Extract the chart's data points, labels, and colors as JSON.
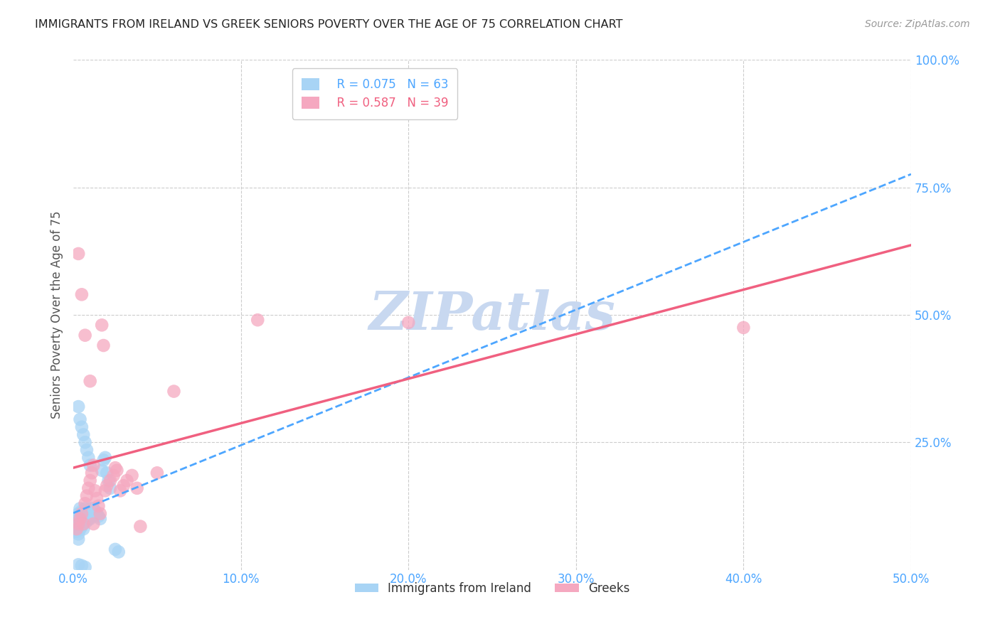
{
  "title": "IMMIGRANTS FROM IRELAND VS GREEK SENIORS POVERTY OVER THE AGE OF 75 CORRELATION CHART",
  "source": "Source: ZipAtlas.com",
  "ylabel": "Seniors Poverty Over the Age of 75",
  "xlim": [
    0.0,
    0.5
  ],
  "ylim": [
    0.0,
    1.0
  ],
  "xticks": [
    0.0,
    0.1,
    0.2,
    0.3,
    0.4,
    0.5
  ],
  "yticks": [
    0.0,
    0.25,
    0.5,
    0.75,
    1.0
  ],
  "ytick_labels": [
    "",
    "25.0%",
    "50.0%",
    "75.0%",
    "100.0%"
  ],
  "xtick_labels": [
    "0.0%",
    "10.0%",
    "20.0%",
    "30.0%",
    "40.0%",
    "50.0%"
  ],
  "legend_ireland_R": "0.075",
  "legend_ireland_N": "63",
  "legend_greek_R": "0.587",
  "legend_greek_N": "39",
  "ireland_color": "#a8d4f5",
  "greek_color": "#f5a8c0",
  "ireland_line_color": "#4da6ff",
  "greek_line_color": "#f06080",
  "watermark_color": "#c8d8f0",
  "ireland_x": [
    0.001,
    0.001,
    0.002,
    0.002,
    0.002,
    0.002,
    0.003,
    0.003,
    0.003,
    0.003,
    0.003,
    0.003,
    0.004,
    0.004,
    0.004,
    0.004,
    0.004,
    0.005,
    0.005,
    0.005,
    0.005,
    0.006,
    0.006,
    0.006,
    0.006,
    0.007,
    0.007,
    0.007,
    0.008,
    0.008,
    0.008,
    0.009,
    0.009,
    0.01,
    0.01,
    0.01,
    0.011,
    0.011,
    0.012,
    0.012,
    0.013,
    0.014,
    0.015,
    0.016,
    0.017,
    0.018,
    0.019,
    0.02,
    0.021,
    0.022,
    0.003,
    0.004,
    0.005,
    0.006,
    0.007,
    0.008,
    0.009,
    0.01,
    0.025,
    0.027,
    0.003,
    0.005,
    0.007
  ],
  "ireland_y": [
    0.09,
    0.08,
    0.105,
    0.095,
    0.085,
    0.075,
    0.11,
    0.1,
    0.09,
    0.08,
    0.07,
    0.06,
    0.12,
    0.11,
    0.1,
    0.09,
    0.08,
    0.115,
    0.105,
    0.095,
    0.085,
    0.11,
    0.1,
    0.09,
    0.08,
    0.12,
    0.11,
    0.1,
    0.115,
    0.105,
    0.095,
    0.11,
    0.1,
    0.12,
    0.11,
    0.1,
    0.115,
    0.105,
    0.12,
    0.11,
    0.115,
    0.11,
    0.105,
    0.1,
    0.195,
    0.215,
    0.22,
    0.19,
    0.175,
    0.16,
    0.32,
    0.295,
    0.28,
    0.265,
    0.25,
    0.235,
    0.22,
    0.205,
    0.04,
    0.035,
    0.01,
    0.008,
    0.005
  ],
  "greek_x": [
    0.002,
    0.003,
    0.004,
    0.005,
    0.006,
    0.007,
    0.008,
    0.009,
    0.01,
    0.011,
    0.012,
    0.013,
    0.014,
    0.015,
    0.016,
    0.017,
    0.018,
    0.019,
    0.02,
    0.022,
    0.024,
    0.026,
    0.028,
    0.03,
    0.032,
    0.035,
    0.038,
    0.05,
    0.06,
    0.11,
    0.2,
    0.4,
    0.003,
    0.005,
    0.007,
    0.01,
    0.012,
    0.025,
    0.04
  ],
  "greek_y": [
    0.08,
    0.09,
    0.1,
    0.11,
    0.09,
    0.13,
    0.145,
    0.16,
    0.175,
    0.19,
    0.205,
    0.155,
    0.14,
    0.125,
    0.11,
    0.48,
    0.44,
    0.155,
    0.165,
    0.175,
    0.185,
    0.195,
    0.155,
    0.165,
    0.175,
    0.185,
    0.16,
    0.19,
    0.35,
    0.49,
    0.485,
    0.475,
    0.62,
    0.54,
    0.46,
    0.37,
    0.09,
    0.2,
    0.085
  ]
}
